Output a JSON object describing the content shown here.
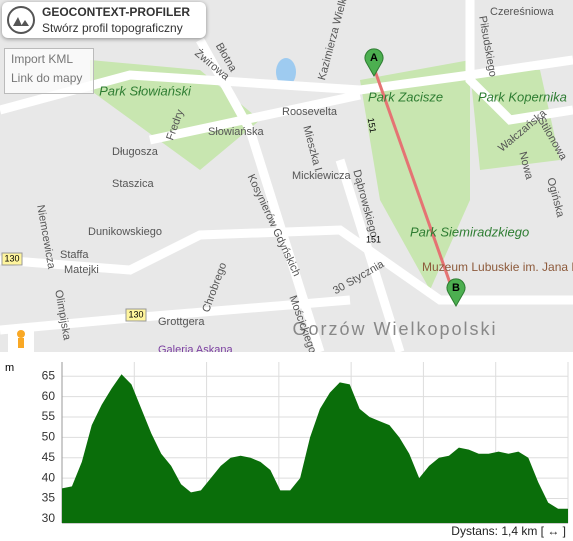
{
  "header": {
    "title": "GEOCONTEXT-PROFILER",
    "subtitle": "Stwórz profil topograficzny"
  },
  "menu": [
    "Import KML",
    "Link do mapy"
  ],
  "map": {
    "labels": [
      "Park Słowiański",
      "Park Zacisze",
      "Park Kopernika",
      "Park Siemiradzkiego",
      "Muzeum Lubuskie im. Jana Dekerta, Zespół...",
      "Gorzów Wielkopolski",
      "Słowiańska",
      "Roosevelta",
      "Kosynierów Gdyńskich",
      "Mickiewicza",
      "Dąbrowskiego",
      "Długosza",
      "Staszica",
      "Dunikowskiego",
      "Niemcewicza",
      "Staffa",
      "Matejki",
      "Olimpijska",
      "Grottgera",
      "Chrobrego",
      "Mościckiego",
      "30 Stycznia",
      "Wałczańska",
      "Czereśniowa",
      "Piłsudskiego",
      "Kazimierza Wielkiego",
      "Żwirowa",
      "Stilonowa",
      "Ogińska",
      "Nowa",
      "Błotna",
      "Mieszka I",
      "Fredry",
      "Galeria Askana"
    ],
    "markers": [
      "A",
      "B"
    ],
    "roads": [
      "130",
      "130",
      "151",
      "151"
    ]
  },
  "chart_data": {
    "type": "area",
    "y_label": "m",
    "color": "#0a6e0a",
    "values": [
      37.5,
      38,
      44,
      53,
      58,
      62,
      65.5,
      63,
      57,
      51,
      46,
      43,
      38.5,
      36.5,
      37,
      40,
      43,
      45,
      45.5,
      45,
      44,
      42,
      37,
      37,
      40,
      50,
      57,
      61,
      63.5,
      63,
      57,
      55,
      54,
      53,
      50,
      46,
      40,
      43,
      45,
      45.5,
      47.5,
      47,
      46,
      46,
      46.5,
      46,
      46.5,
      45,
      39,
      34,
      32.5,
      32.5
    ],
    "ylim": [
      29,
      68.5
    ],
    "yticks": [
      30,
      35,
      40,
      45,
      50,
      55,
      60,
      65
    ],
    "x_grid_count": 7,
    "grid": true,
    "footer": "Dystans: 1,4 km [ ↔ ]"
  }
}
